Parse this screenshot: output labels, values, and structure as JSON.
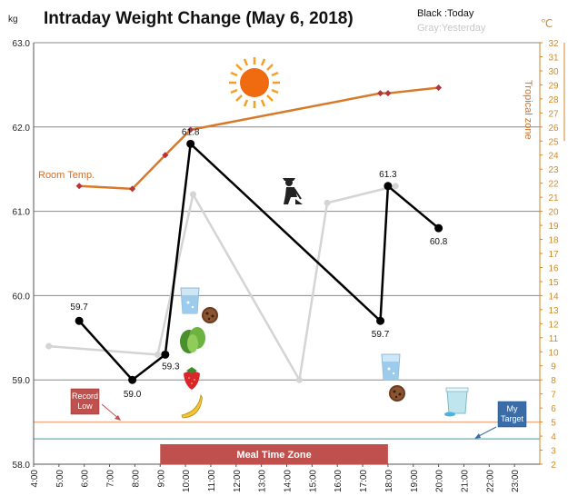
{
  "chart_data": {
    "type": "line",
    "title": "Intraday Weight Change (May 6, 2018)",
    "y_unit_label": "kg",
    "y2_unit_label": "℃",
    "legend": {
      "today": "Black :Today",
      "yesterday": "Gray:Yesterday"
    },
    "x_ticks": [
      "4:00",
      "5:00",
      "6:00",
      "7:00",
      "8:00",
      "9:00",
      "10:00",
      "11:00",
      "12:00",
      "13:00",
      "14:00",
      "15:00",
      "16:00",
      "17:00",
      "18:00",
      "19:00",
      "20:00",
      "21:00",
      "22:00",
      "23:00"
    ],
    "y_ticks": [
      "58.0",
      "59.0",
      "60.0",
      "61.0",
      "62.0",
      "63.0"
    ],
    "ylim": [
      58,
      63
    ],
    "y2lim": [
      2,
      32
    ],
    "series": [
      {
        "name": "Today",
        "color": "#000000",
        "x": [
          5.8,
          7.9,
          9.2,
          10.2,
          17.7,
          18.0,
          20.0
        ],
        "values": [
          59.7,
          59.0,
          59.3,
          61.8,
          59.7,
          61.3,
          60.8
        ],
        "labels": [
          "59.7",
          "59.0",
          "59.3",
          "61.8",
          "59.7",
          "61.3",
          "60.8"
        ]
      },
      {
        "name": "Yesterday",
        "color": "#d4d4d4",
        "x": [
          4.6,
          8.9,
          10.3,
          14.5,
          15.6,
          18.3
        ],
        "values": [
          59.4,
          59.3,
          61.2,
          59.0,
          61.1,
          61.3
        ]
      },
      {
        "name": "Room Temp.",
        "axis": "right",
        "color": "#d8792a",
        "marker_color": "#b8323a",
        "x": [
          5.8,
          7.9,
          9.2,
          10.2,
          17.7,
          18.0,
          20.0
        ],
        "values": [
          21.8,
          21.6,
          24.0,
          25.8,
          28.4,
          28.4,
          28.8
        ]
      }
    ],
    "annotations": {
      "room_temp": "Room Temp.",
      "tropical_zone": "Tropical zone",
      "tropical_threshold": 25,
      "record_low": "Record Low",
      "record_low_value": 58.5,
      "my_target": "My Target",
      "my_target_value": 58.3,
      "meal_zone": "Meal Time Zone",
      "meal_zone_range": [
        9.0,
        18.0
      ]
    },
    "colors": {
      "today": "#000000",
      "yesterday": "#d4d4d4",
      "room_temp": "#d8792a",
      "temp_marker": "#b8323a",
      "record_low_line": "#f0b08a",
      "target_line": "#7ac0c0",
      "meal_zone": "#c0504d",
      "right_axis": "#d08a2a",
      "note_box_target": "#3a6da8"
    },
    "icons": [
      "sun-icon",
      "water-glass-icon",
      "cookie-icon",
      "lettuce-icon",
      "strawberry-icon",
      "banana-icon",
      "gardening-person-icon",
      "milk-cup-icon"
    ]
  }
}
